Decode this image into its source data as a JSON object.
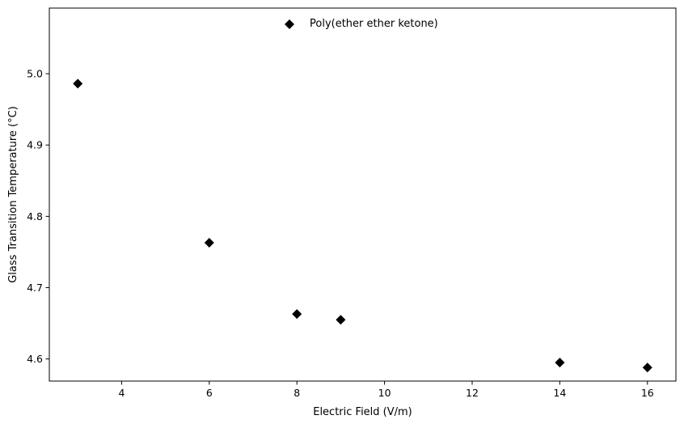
{
  "chart_data": {
    "type": "scatter",
    "title": "",
    "xlabel": "Electric Field (V/m)",
    "ylabel": "Glass Transition Temperature (°C)",
    "xlim": [
      2.35,
      16.65
    ],
    "ylim": [
      4.569,
      5.092
    ],
    "xticks": [
      4,
      6,
      8,
      10,
      12,
      14,
      16
    ],
    "xtick_labels": [
      "4",
      "6",
      "8",
      "10",
      "12",
      "14",
      "16"
    ],
    "yticks": [
      4.6,
      4.7,
      4.8,
      4.9,
      5.0
    ],
    "ytick_labels": [
      "4.6",
      "4.7",
      "4.8",
      "4.9",
      "5.0"
    ],
    "grid": false,
    "legend_position": "top-center",
    "series": [
      {
        "name": "Poly(ether ether ketone)",
        "marker": "diamond",
        "color": "#000000",
        "x": [
          3,
          6,
          8,
          9,
          14,
          16
        ],
        "y": [
          4.986,
          4.763,
          4.663,
          4.655,
          4.595,
          4.588
        ]
      }
    ]
  }
}
